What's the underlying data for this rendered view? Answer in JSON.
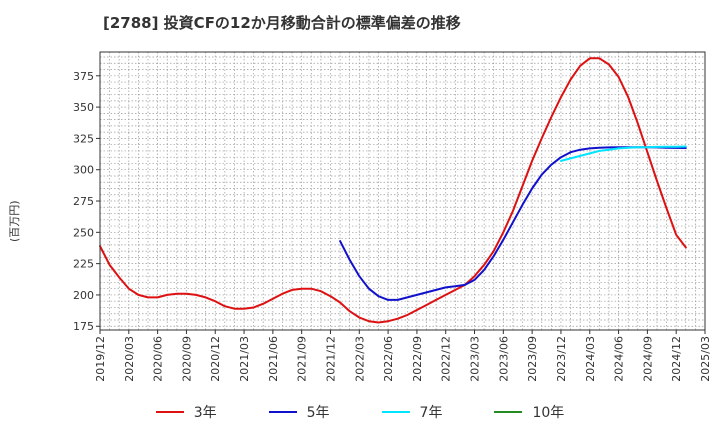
{
  "title": "[2788]  投資CFの12か月移動合計の標準偏差の推移",
  "chart_data": {
    "type": "line",
    "ylabel": "(百万円)",
    "ylim": [
      172,
      394
    ],
    "yticks": [
      175,
      200,
      225,
      250,
      275,
      300,
      325,
      350,
      375
    ],
    "xticks": [
      "2019/12",
      "2020/03",
      "2020/06",
      "2020/09",
      "2020/12",
      "2021/03",
      "2021/06",
      "2021/09",
      "2021/12",
      "2022/03",
      "2022/06",
      "2022/09",
      "2022/12",
      "2023/03",
      "2023/06",
      "2023/09",
      "2023/12",
      "2024/03",
      "2024/06",
      "2024/09",
      "2024/12",
      "2025/03"
    ],
    "grid": true,
    "legend_position": "bottom",
    "series": [
      {
        "name": "3年",
        "color": "#dd1111",
        "points": [
          [
            "2019/12",
            239
          ],
          [
            "2020/01",
            224
          ],
          [
            "2020/02",
            214
          ],
          [
            "2020/03",
            205
          ],
          [
            "2020/04",
            200
          ],
          [
            "2020/05",
            198
          ],
          [
            "2020/06",
            198
          ],
          [
            "2020/07",
            200
          ],
          [
            "2020/08",
            201
          ],
          [
            "2020/09",
            201
          ],
          [
            "2020/10",
            200
          ],
          [
            "2020/11",
            198
          ],
          [
            "2020/12",
            195
          ],
          [
            "2021/01",
            191
          ],
          [
            "2021/02",
            189
          ],
          [
            "2021/03",
            189
          ],
          [
            "2021/04",
            190
          ],
          [
            "2021/05",
            193
          ],
          [
            "2021/06",
            197
          ],
          [
            "2021/07",
            201
          ],
          [
            "2021/08",
            204
          ],
          [
            "2021/09",
            205
          ],
          [
            "2021/10",
            205
          ],
          [
            "2021/11",
            203
          ],
          [
            "2021/12",
            199
          ],
          [
            "2022/01",
            194
          ],
          [
            "2022/02",
            187
          ],
          [
            "2022/03",
            182
          ],
          [
            "2022/04",
            179
          ],
          [
            "2022/05",
            178
          ],
          [
            "2022/06",
            179
          ],
          [
            "2022/07",
            181
          ],
          [
            "2022/08",
            184
          ],
          [
            "2022/09",
            188
          ],
          [
            "2022/10",
            192
          ],
          [
            "2022/11",
            196
          ],
          [
            "2022/12",
            200
          ],
          [
            "2023/01",
            204
          ],
          [
            "2023/02",
            208
          ],
          [
            "2023/03",
            215
          ],
          [
            "2023/04",
            224
          ],
          [
            "2023/05",
            235
          ],
          [
            "2023/06",
            250
          ],
          [
            "2023/07",
            267
          ],
          [
            "2023/08",
            287
          ],
          [
            "2023/09",
            307
          ],
          [
            "2023/10",
            325
          ],
          [
            "2023/11",
            342
          ],
          [
            "2023/12",
            358
          ],
          [
            "2024/01",
            372
          ],
          [
            "2024/02",
            383
          ],
          [
            "2024/03",
            389
          ],
          [
            "2024/04",
            389
          ],
          [
            "2024/05",
            384
          ],
          [
            "2024/06",
            374
          ],
          [
            "2024/07",
            358
          ],
          [
            "2024/08",
            337
          ],
          [
            "2024/09",
            314
          ],
          [
            "2024/10",
            291
          ],
          [
            "2024/11",
            269
          ],
          [
            "2024/12",
            248
          ],
          [
            "2025/01",
            238
          ]
        ]
      },
      {
        "name": "5年",
        "color": "#1111cc",
        "points": [
          [
            "2022/01",
            243
          ],
          [
            "2022/02",
            228
          ],
          [
            "2022/03",
            215
          ],
          [
            "2022/04",
            205
          ],
          [
            "2022/05",
            199
          ],
          [
            "2022/06",
            196
          ],
          [
            "2022/07",
            196
          ],
          [
            "2022/08",
            198
          ],
          [
            "2022/09",
            200
          ],
          [
            "2022/10",
            202
          ],
          [
            "2022/11",
            204
          ],
          [
            "2022/12",
            206
          ],
          [
            "2023/01",
            207
          ],
          [
            "2023/02",
            208
          ],
          [
            "2023/03",
            212
          ],
          [
            "2023/04",
            220
          ],
          [
            "2023/05",
            231
          ],
          [
            "2023/06",
            244
          ],
          [
            "2023/07",
            258
          ],
          [
            "2023/08",
            272
          ],
          [
            "2023/09",
            285
          ],
          [
            "2023/10",
            296
          ],
          [
            "2023/11",
            304
          ],
          [
            "2023/12",
            310
          ],
          [
            "2024/01",
            314
          ],
          [
            "2024/02",
            316
          ],
          [
            "2024/03",
            317
          ],
          [
            "2024/04",
            317.5
          ],
          [
            "2024/05",
            317.8
          ],
          [
            "2024/06",
            318
          ],
          [
            "2024/07",
            318
          ],
          [
            "2024/08",
            318
          ],
          [
            "2024/09",
            318
          ],
          [
            "2024/10",
            317.8
          ],
          [
            "2024/11",
            317.6
          ],
          [
            "2024/12",
            317.4
          ],
          [
            "2025/01",
            317.3
          ]
        ]
      },
      {
        "name": "7年",
        "color": "#00e5ff",
        "points": [
          [
            "2023/12",
            307
          ],
          [
            "2024/01",
            309
          ],
          [
            "2024/02",
            311
          ],
          [
            "2024/03",
            313
          ],
          [
            "2024/04",
            315
          ],
          [
            "2024/05",
            316
          ],
          [
            "2024/06",
            317
          ],
          [
            "2024/07",
            317.5
          ],
          [
            "2024/08",
            318
          ],
          [
            "2024/09",
            318
          ],
          [
            "2024/10",
            318.2
          ],
          [
            "2024/11",
            318.3
          ],
          [
            "2024/12",
            318.4
          ],
          [
            "2025/01",
            318.5
          ]
        ]
      },
      {
        "name": "10年",
        "color": "#228b22",
        "points": []
      }
    ]
  }
}
